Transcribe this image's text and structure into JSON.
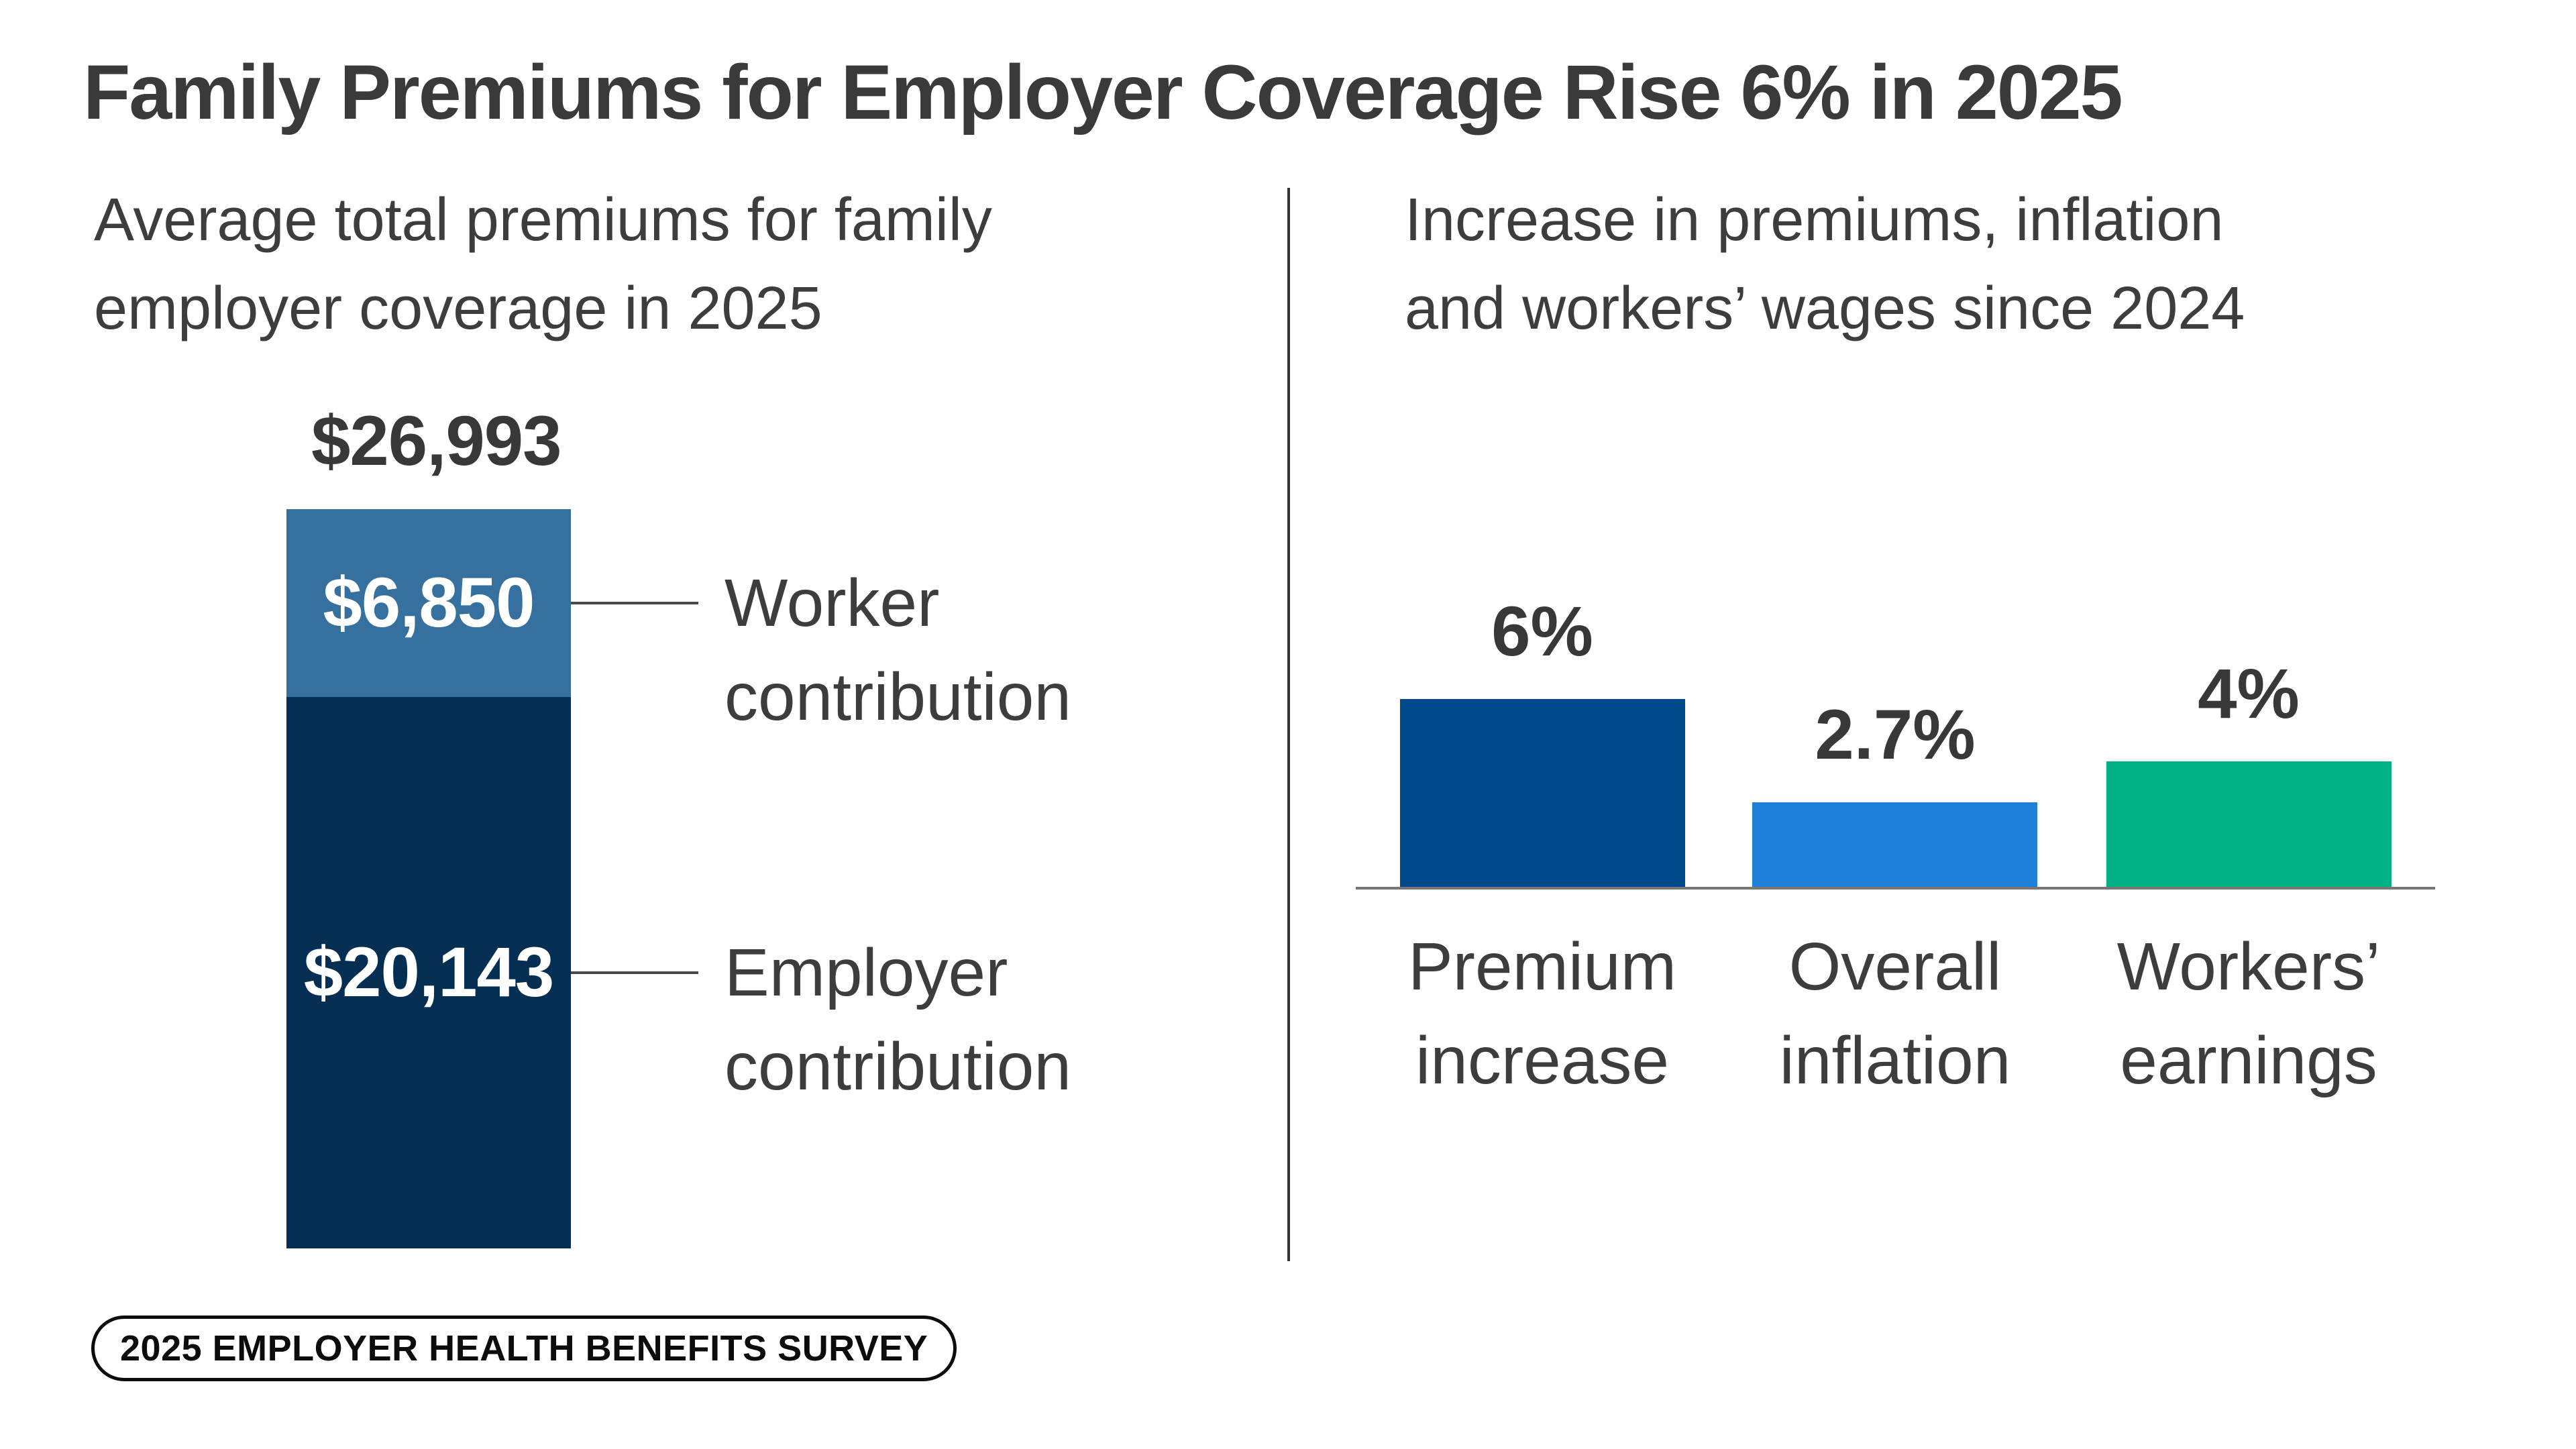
{
  "title": "Family Premiums for Employer Coverage Rise 6% in 2025",
  "left_panel": {
    "subtitle_line1": "Average total premiums for family",
    "subtitle_line2": "employer coverage in 2025"
  },
  "right_panel": {
    "subtitle_line1": "Increase in premiums, inflation",
    "subtitle_line2": "and workers’ wages since 2024"
  },
  "badge": {
    "label": "2025 EMPLOYER HEALTH BENEFITS SURVEY"
  },
  "colors": {
    "title_text": "#3A3A3A",
    "body_text": "#3D3D3D",
    "worker_segment": "#35709E",
    "employer_segment": "#042E52",
    "premium_bar": "#004A8C",
    "inflation_bar": "#1E80D6",
    "earnings_bar": "#00B186",
    "axis_line": "#777777",
    "connector_line": "#4A4A4A",
    "divider_line": "#333333",
    "badge_text": "#0C0C0C"
  },
  "chart_data": [
    {
      "type": "bar",
      "subtype": "single-stacked-column",
      "title": "Average total premiums for family employer coverage in 2025",
      "total": {
        "label": "$26,993",
        "value": 26993
      },
      "segments": [
        {
          "name": "Worker contribution",
          "label": "$6,850",
          "value": 6850,
          "color": "#35709E"
        },
        {
          "name": "Employer contribution",
          "label": "$20,143",
          "value": 20143,
          "color": "#042E52"
        }
      ],
      "legend_position": "right-annotations",
      "grid": false
    },
    {
      "type": "bar",
      "title": "Increase in premiums, inflation and workers’ wages since 2024",
      "categories": [
        "Premium increase",
        "Overall inflation",
        "Workers’ earnings"
      ],
      "values": [
        6,
        2.7,
        4
      ],
      "value_labels": [
        "6%",
        "2.7%",
        "4%"
      ],
      "colors": [
        "#004A8C",
        "#1E80D6",
        "#00B186"
      ],
      "ylim": [
        0,
        6.5
      ],
      "xlabel": "",
      "ylabel": "",
      "grid": false,
      "axis": "baseline-only"
    }
  ]
}
